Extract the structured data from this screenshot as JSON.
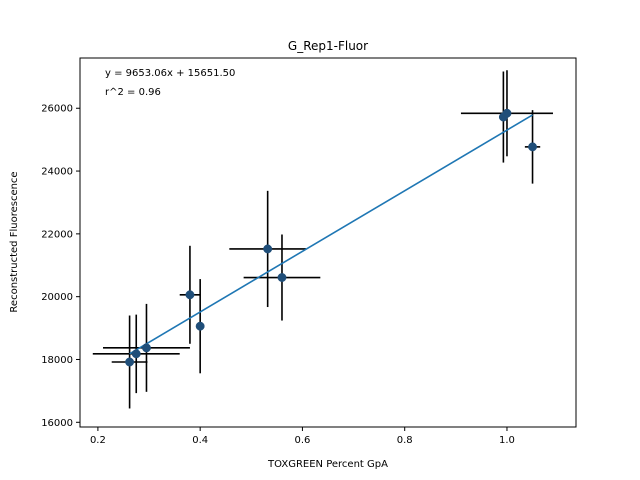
{
  "chart_data": {
    "type": "scatter",
    "title": "G_Rep1-Fluor",
    "xlabel": "TOXGREEN Percent GpA",
    "ylabel": "Reconstructed Fluorescence",
    "xlim": [
      0.165,
      1.135
    ],
    "ylim": [
      15850,
      27600
    ],
    "xticks": [
      0.2,
      0.4,
      0.6,
      0.8,
      1.0
    ],
    "xtick_labels": [
      "0.2",
      "0.4",
      "0.6",
      "0.8",
      "1.0"
    ],
    "yticks": [
      16000,
      18000,
      20000,
      22000,
      24000,
      26000
    ],
    "ytick_labels": [
      "16000",
      "18000",
      "20000",
      "22000",
      "24000",
      "26000"
    ],
    "grid": false,
    "annotations": [
      "y = 9653.06x + 15651.50",
      "r^2 = 0.96"
    ],
    "fit": {
      "slope": 9653.06,
      "intercept": 15651.5,
      "r2": 0.96
    },
    "points": [
      {
        "x": 0.262,
        "y": 17920,
        "xerr": 0.035,
        "yerr": 1480
      },
      {
        "x": 0.275,
        "y": 18180,
        "xerr": 0.085,
        "yerr": 1250
      },
      {
        "x": 0.295,
        "y": 18370,
        "xerr": 0.085,
        "yerr": 1400
      },
      {
        "x": 0.38,
        "y": 20060,
        "xerr": 0.02,
        "yerr": 1560
      },
      {
        "x": 0.4,
        "y": 19060,
        "xerr": 0.005,
        "yerr": 1500
      },
      {
        "x": 0.532,
        "y": 21520,
        "xerr": 0.075,
        "yerr": 1850
      },
      {
        "x": 0.56,
        "y": 20610,
        "xerr": 0.075,
        "yerr": 1370
      },
      {
        "x": 0.993,
        "y": 25720,
        "xerr": 0.005,
        "yerr": 1450
      },
      {
        "x": 1.0,
        "y": 25840,
        "xerr": 0.09,
        "yerr": 1370
      },
      {
        "x": 1.05,
        "y": 24770,
        "xerr": 0.015,
        "yerr": 1170
      }
    ],
    "colors": {
      "marker": "#1f4e79",
      "fit_line": "#1f77b4",
      "errorbar": "#000000"
    }
  }
}
